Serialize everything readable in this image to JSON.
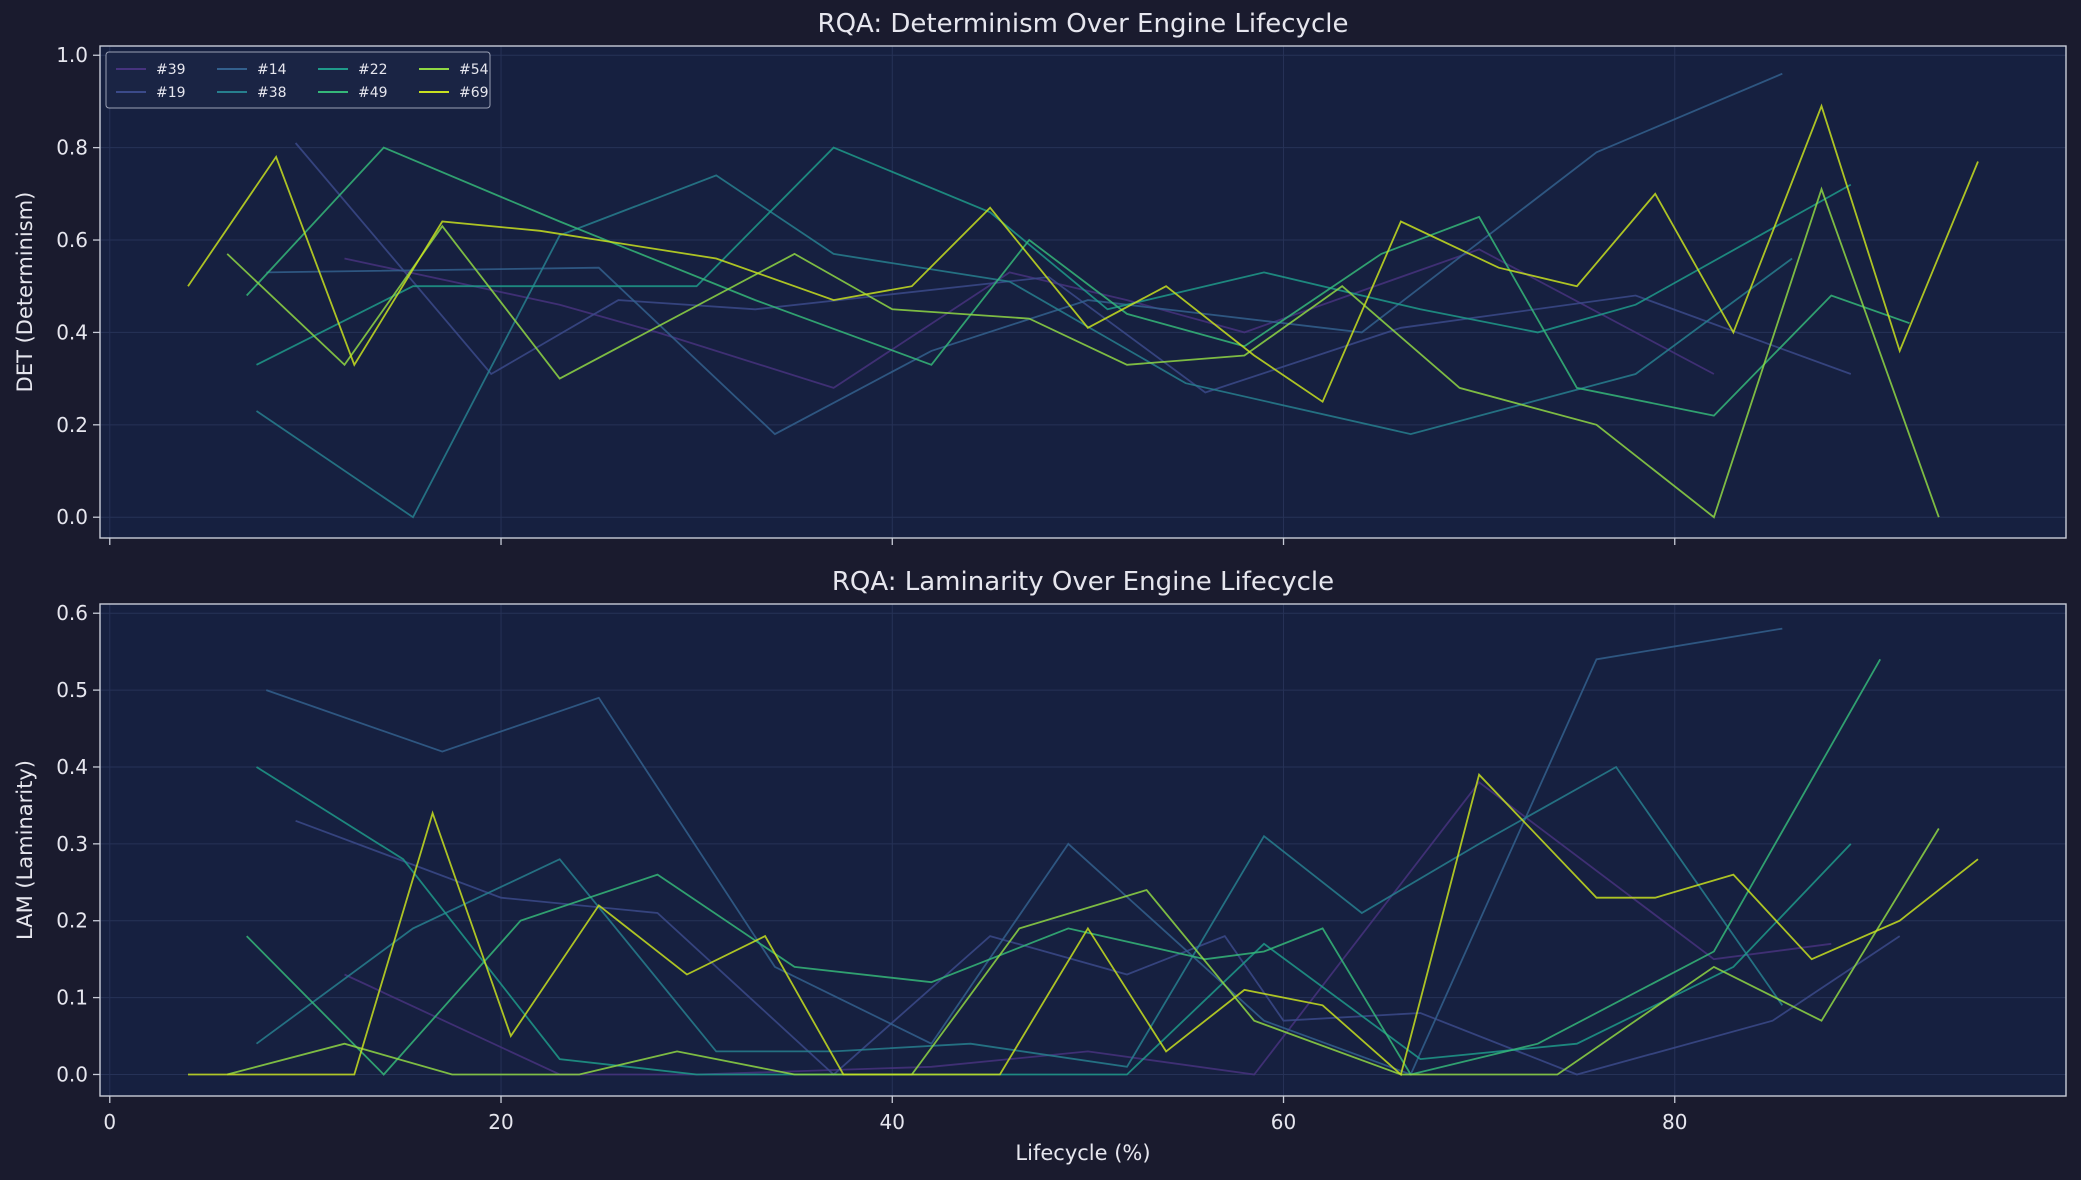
{
  "colors": {
    "figure_bg": "#1a1b2e",
    "axes_bg": "#162040",
    "spine": "#c8ccd8",
    "text": "#e6e6ee",
    "grid": "#263257",
    "legend_bg": "#1a2444"
  },
  "chart_data": [
    {
      "type": "line",
      "title": "RQA: Determinism Over Engine Lifecycle",
      "xlabel": "",
      "ylabel": "DET (Determinism)",
      "xlim": [
        -0.5,
        100
      ],
      "ylim": [
        -0.045,
        1.02
      ],
      "xticks": [
        0,
        20,
        40,
        60,
        80
      ],
      "xtick_labels": [
        "",
        "",
        "",
        "",
        ""
      ],
      "yticks": [
        0.0,
        0.2,
        0.4,
        0.6,
        0.8,
        1.0
      ],
      "ytick_labels": [
        "0.0",
        "0.2",
        "0.4",
        "0.6",
        "0.8",
        "1.0"
      ],
      "grid": true,
      "legend": {
        "loc": "upper-left",
        "ncol": 4
      },
      "series": [
        {
          "name": "#39",
          "color": "#46337e",
          "x": [
            12,
            23,
            28,
            37,
            46,
            52,
            58,
            70,
            82
          ],
          "y": [
            0.56,
            0.46,
            0.4,
            0.28,
            0.53,
            0.47,
            0.4,
            0.58,
            0.31
          ]
        },
        {
          "name": "#19",
          "color": "#3b4a8a",
          "x": [
            9.5,
            19.5,
            26,
            33,
            48,
            56,
            66,
            78,
            89
          ],
          "y": [
            0.81,
            0.31,
            0.47,
            0.45,
            0.52,
            0.27,
            0.41,
            0.48,
            0.31
          ]
        },
        {
          "name": "#14",
          "color": "#33608d",
          "x": [
            8,
            25,
            34,
            42,
            50,
            64,
            76,
            85.5
          ],
          "y": [
            0.53,
            0.54,
            0.18,
            0.36,
            0.47,
            0.4,
            0.79,
            0.96
          ]
        },
        {
          "name": "#38",
          "color": "#277f8e",
          "x": [
            7.5,
            15.5,
            23,
            31,
            37,
            46,
            55,
            66.5,
            78,
            86
          ],
          "y": [
            0.23,
            0.0,
            0.61,
            0.74,
            0.57,
            0.51,
            0.29,
            0.18,
            0.31,
            0.56
          ]
        },
        {
          "name": "#22",
          "color": "#1f9a8a",
          "x": [
            7.5,
            15.5,
            30,
            37,
            45,
            51,
            59,
            67,
            73,
            78,
            89
          ],
          "y": [
            0.33,
            0.5,
            0.5,
            0.8,
            0.66,
            0.45,
            0.53,
            0.45,
            0.4,
            0.46,
            0.72
          ]
        },
        {
          "name": "#49",
          "color": "#35b779",
          "x": [
            7,
            14,
            23,
            33,
            42,
            47,
            52,
            58,
            65,
            70,
            75,
            82,
            88,
            92
          ],
          "y": [
            0.48,
            0.8,
            0.64,
            0.47,
            0.33,
            0.6,
            0.44,
            0.37,
            0.57,
            0.65,
            0.28,
            0.22,
            0.48,
            0.42
          ]
        },
        {
          "name": "#54",
          "color": "#8fd744",
          "x": [
            6,
            12,
            17,
            23,
            35,
            40,
            47,
            52,
            58,
            63,
            69,
            76,
            82,
            87.5,
            93.5
          ],
          "y": [
            0.57,
            0.33,
            0.63,
            0.3,
            0.57,
            0.45,
            0.43,
            0.33,
            0.35,
            0.5,
            0.28,
            0.2,
            0.0,
            0.71,
            0.0
          ]
        },
        {
          "name": "#69",
          "color": "#c8e020",
          "x": [
            4,
            8.5,
            12.5,
            17,
            22,
            31,
            37,
            41,
            45,
            50,
            54,
            58.5,
            62,
            66,
            71,
            75,
            79,
            83,
            87.5,
            91.5,
            95.5
          ],
          "y": [
            0.5,
            0.78,
            0.33,
            0.64,
            0.62,
            0.56,
            0.47,
            0.5,
            0.67,
            0.41,
            0.5,
            0.35,
            0.25,
            0.64,
            0.54,
            0.5,
            0.7,
            0.4,
            0.89,
            0.36,
            0.77
          ]
        }
      ]
    },
    {
      "type": "line",
      "title": "RQA: Laminarity Over Engine Lifecycle",
      "xlabel": "Lifecycle (%)",
      "ylabel": "LAM (Laminarity)",
      "xlim": [
        -0.5,
        100
      ],
      "ylim": [
        -0.028,
        0.612
      ],
      "xticks": [
        0,
        20,
        40,
        60,
        80
      ],
      "xtick_labels": [
        "0",
        "20",
        "40",
        "60",
        "80"
      ],
      "yticks": [
        0.0,
        0.1,
        0.2,
        0.3,
        0.4,
        0.5,
        0.6
      ],
      "ytick_labels": [
        "0.0",
        "0.1",
        "0.2",
        "0.3",
        "0.4",
        "0.5",
        "0.6"
      ],
      "grid": true,
      "series": [
        {
          "name": "#39",
          "color": "#46337e",
          "x": [
            12,
            23,
            30,
            42,
            50,
            58.5,
            70,
            82,
            88
          ],
          "y": [
            0.13,
            0.0,
            0.0,
            0.01,
            0.03,
            0.0,
            0.38,
            0.15,
            0.17
          ]
        },
        {
          "name": "#19",
          "color": "#3b4a8a",
          "x": [
            9.5,
            20,
            28,
            37,
            45,
            52,
            57,
            60,
            67,
            75,
            85,
            91.5
          ],
          "y": [
            0.33,
            0.23,
            0.21,
            0.0,
            0.18,
            0.13,
            0.18,
            0.07,
            0.08,
            0.0,
            0.07,
            0.18
          ]
        },
        {
          "name": "#14",
          "color": "#33608d",
          "x": [
            8,
            17,
            25,
            34,
            42,
            49,
            59,
            66.5,
            76,
            85.5
          ],
          "y": [
            0.5,
            0.42,
            0.49,
            0.14,
            0.04,
            0.3,
            0.07,
            0.0,
            0.54,
            0.58
          ]
        },
        {
          "name": "#38",
          "color": "#277f8e",
          "x": [
            7.5,
            15.5,
            23,
            31,
            37,
            44,
            52,
            59,
            64,
            70,
            77,
            85.5
          ],
          "y": [
            0.04,
            0.19,
            0.28,
            0.03,
            0.03,
            0.04,
            0.01,
            0.31,
            0.21,
            0.3,
            0.4,
            0.09
          ]
        },
        {
          "name": "#22",
          "color": "#1f9a8a",
          "x": [
            7.5,
            15,
            23,
            30,
            40,
            52,
            59,
            67,
            75,
            83,
            89
          ],
          "y": [
            0.4,
            0.28,
            0.02,
            0.0,
            0.0,
            0.0,
            0.17,
            0.02,
            0.04,
            0.14,
            0.3
          ]
        },
        {
          "name": "#49",
          "color": "#35b779",
          "x": [
            7,
            14,
            21,
            28,
            35,
            42,
            49,
            56,
            59,
            62,
            66.5,
            73,
            82,
            90.5
          ],
          "y": [
            0.18,
            0.0,
            0.2,
            0.26,
            0.14,
            0.12,
            0.19,
            0.15,
            0.16,
            0.19,
            0.0,
            0.04,
            0.16,
            0.54
          ]
        },
        {
          "name": "#54",
          "color": "#8fd744",
          "x": [
            6,
            12,
            17.5,
            24,
            29,
            35,
            41,
            46.5,
            53,
            58.5,
            66,
            70,
            74,
            82,
            87.5,
            93.5
          ],
          "y": [
            0.0,
            0.04,
            0.0,
            0.0,
            0.03,
            0.0,
            0.0,
            0.19,
            0.24,
            0.07,
            0.0,
            0.0,
            0.0,
            0.14,
            0.07,
            0.32
          ]
        },
        {
          "name": "#69",
          "color": "#c8e020",
          "x": [
            4,
            8.5,
            12.5,
            16.5,
            20.5,
            25,
            29.5,
            33.5,
            37.5,
            41,
            45.5,
            50,
            54,
            58,
            62,
            66,
            70,
            76,
            79,
            83,
            87,
            91.5,
            95.5
          ],
          "y": [
            0.0,
            0.0,
            0.0,
            0.34,
            0.05,
            0.22,
            0.13,
            0.18,
            0.0,
            0.0,
            0.0,
            0.19,
            0.03,
            0.11,
            0.09,
            0.0,
            0.39,
            0.23,
            0.23,
            0.26,
            0.15,
            0.2,
            0.28
          ]
        }
      ]
    }
  ]
}
